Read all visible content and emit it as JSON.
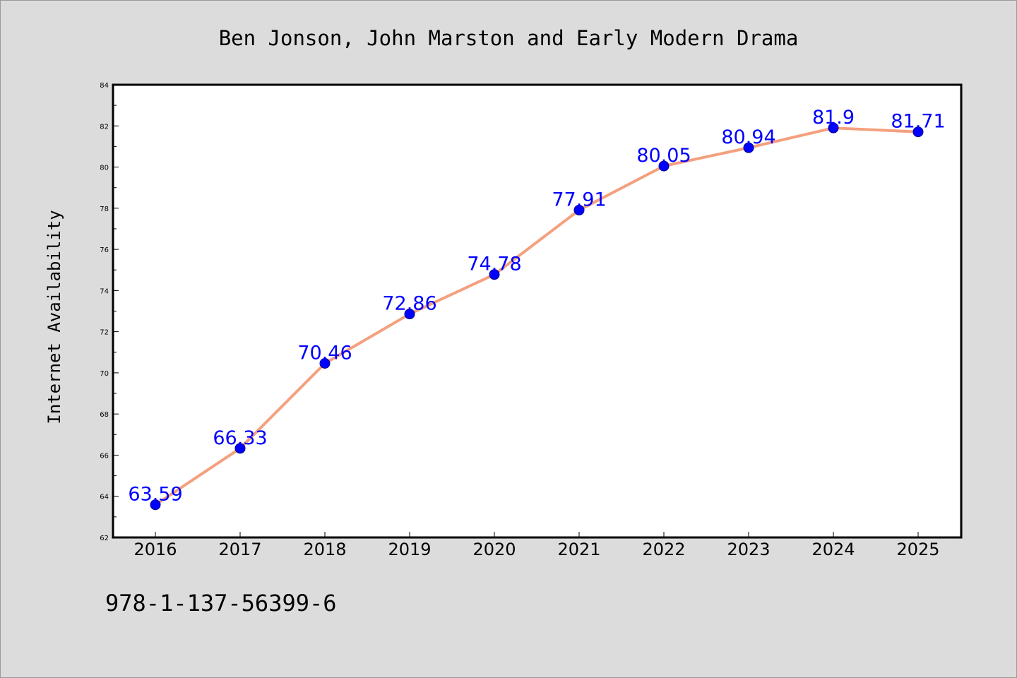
{
  "colors": {
    "background": "#dcdcdc",
    "plot_background": "#ffffff",
    "line": "#f4a07e",
    "marker": "#0000ff",
    "label": "#0000ff"
  },
  "footer": {
    "text": "978-1-137-56399-6"
  },
  "chart_data": {
    "type": "line",
    "title": "Ben Jonson, John Marston and Early Modern Drama",
    "xlabel": "",
    "ylabel": "Internet Availability",
    "x": [
      "2016",
      "2017",
      "2018",
      "2019",
      "2020",
      "2021",
      "2022",
      "2023",
      "2024",
      "2025"
    ],
    "series": [
      {
        "values": [
          63.59,
          66.33,
          70.46,
          72.86,
          74.78,
          77.91,
          80.05,
          80.94,
          81.9,
          81.71
        ],
        "labels": [
          "63.59",
          "66.33",
          "70.46",
          "72.86",
          "74.78",
          "77.91",
          "80.05",
          "80.94",
          "81.9",
          "81.71"
        ]
      }
    ],
    "ylim": [
      62,
      84
    ],
    "yticks": [
      62,
      64,
      66,
      68,
      70,
      72,
      74,
      76,
      78,
      80,
      82,
      84
    ],
    "grid": false,
    "legend": "none",
    "markers": true,
    "data_labels": true
  }
}
